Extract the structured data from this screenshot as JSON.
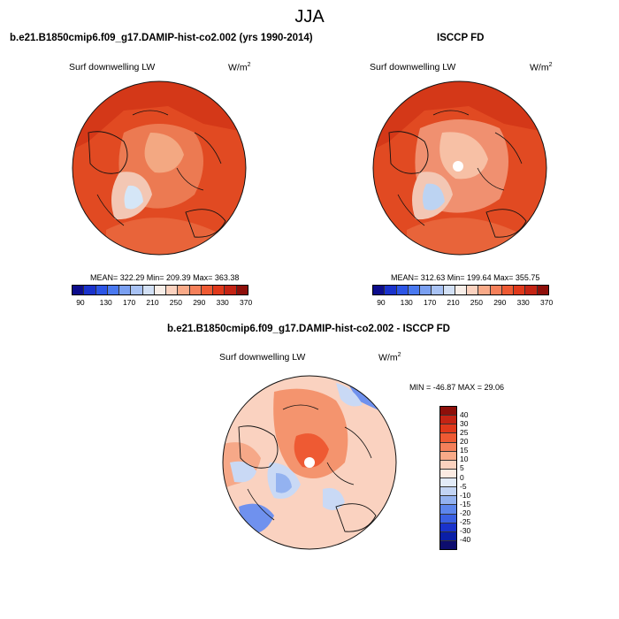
{
  "season": "JJA",
  "panel_model": {
    "header": "b.e21.B1850cmip6.f09_g17.DAMIP-hist-co2.002 (yrs 1990-2014)",
    "variable": "Surf downwelling LW",
    "units_base": "W/m",
    "units_exp": "2",
    "stats": "MEAN= 322.29  Min= 209.39  Max= 363.38"
  },
  "panel_obs": {
    "header": "ISCCP FD",
    "variable": "Surf downwelling LW",
    "units_base": "W/m",
    "units_exp": "2",
    "stats": "MEAN= 312.63  Min= 199.64  Max= 355.75"
  },
  "panel_diff": {
    "header": "b.e21.B1850cmip6.f09_g17.DAMIP-hist-co2.002 - ISCCP FD",
    "variable": "Surf downwelling LW",
    "units_base": "W/m",
    "units_exp": "2",
    "stats": "MIN = -46.87 MAX =  29.06"
  },
  "colorbar_abs": {
    "labels": [
      "90",
      "130",
      "170",
      "210",
      "250",
      "290",
      "330",
      "370"
    ],
    "colors": [
      "#0d0d8c",
      "#1a33cc",
      "#2c55e6",
      "#4a79f0",
      "#7aa0f2",
      "#a8c2f4",
      "#d2e0f5",
      "#f8eee8",
      "#fbd2bf",
      "#f9aa88",
      "#f5805a",
      "#ee5a33",
      "#e0391b",
      "#c42414",
      "#8e0f0a"
    ]
  },
  "colorbar_diff": {
    "labels": [
      "40",
      "30",
      "25",
      "20",
      "15",
      "10",
      "5",
      "0",
      "-5",
      "-10",
      "-15",
      "-20",
      "-25",
      "-30",
      "-40"
    ],
    "colors": [
      "#8e0f0a",
      "#c42414",
      "#e0391b",
      "#ee5a33",
      "#f5805a",
      "#f9aa88",
      "#fbd2bf",
      "#fcebe2",
      "#e2ebf8",
      "#c2d4f4",
      "#93b2f0",
      "#5d86ec",
      "#3a60e3",
      "#1a33cc",
      "#0a1fa8",
      "#0d0d6e"
    ]
  },
  "maps": {
    "model": {
      "ocean": "#e14a22",
      "land_main": "#ea6a40",
      "ice": "#f3c7b4",
      "ice_core": "#d5e6f7",
      "polar": "#f3a882"
    },
    "obs": {
      "ocean": "#e14a22",
      "land_main": "#ea6a40",
      "ice": "#f3c7b4",
      "ice_core": "#d5e6f7",
      "polar": "#f7c0a5"
    },
    "diff": {
      "base": "#fad2c0",
      "warm": "#f4946e",
      "cool": "#c9d9f5",
      "cold": "#6f91ee"
    }
  }
}
